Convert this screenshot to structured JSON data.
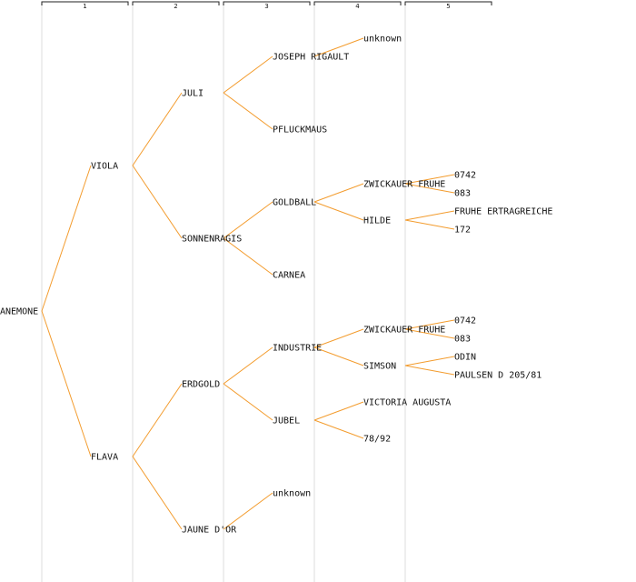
{
  "generations": [
    "1",
    "2",
    "3",
    "4",
    "5"
  ],
  "tree": {
    "name": "ANEMONE",
    "children": [
      {
        "name": "VIOLA",
        "children": [
          {
            "name": "JULI",
            "children": [
              {
                "name": "JOSEPH RIGAULT",
                "children": [
                  {
                    "name": "unknown"
                  }
                ]
              },
              {
                "name": "PFLUCKMAUS"
              }
            ]
          },
          {
            "name": "SONNENRAGIS",
            "children": [
              {
                "name": "GOLDBALL",
                "children": [
                  {
                    "name": "ZWICKAUER FRUHE",
                    "children": [
                      {
                        "name": "0742"
                      },
                      {
                        "name": "083"
                      }
                    ]
                  },
                  {
                    "name": "HILDE",
                    "children": [
                      {
                        "name": "FRUHE ERTRAGREICHE"
                      },
                      {
                        "name": "172"
                      }
                    ]
                  }
                ]
              },
              {
                "name": "CARNEA"
              }
            ]
          }
        ]
      },
      {
        "name": "FLAVA",
        "children": [
          {
            "name": "ERDGOLD",
            "children": [
              {
                "name": "INDUSTRIE",
                "children": [
                  {
                    "name": "ZWICKAUER FRUHE",
                    "children": [
                      {
                        "name": "0742"
                      },
                      {
                        "name": "083"
                      }
                    ]
                  },
                  {
                    "name": "SIMSON",
                    "children": [
                      {
                        "name": "ODIN"
                      },
                      {
                        "name": "PAULSEN D 205/81"
                      }
                    ]
                  }
                ]
              },
              {
                "name": "JUBEL",
                "children": [
                  {
                    "name": "VICTORIA AUGUSTA"
                  },
                  {
                    "name": "78/92"
                  }
                ]
              }
            ]
          },
          {
            "name": "JAUNE D'OR",
            "children": [
              {
                "name": "unknown"
              }
            ]
          }
        ]
      }
    ]
  }
}
